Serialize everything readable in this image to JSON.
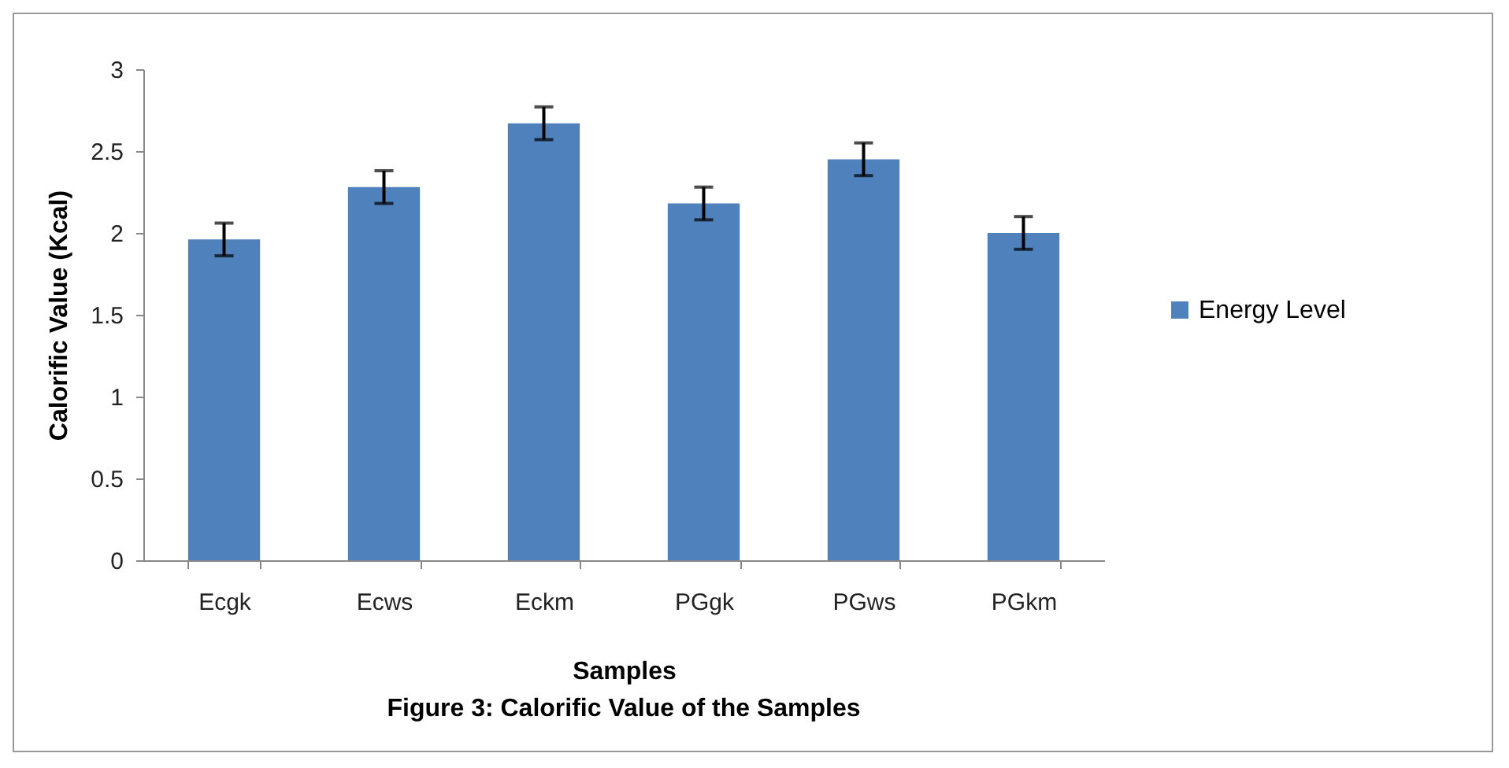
{
  "chart_data": {
    "type": "bar",
    "title": "Figure 3:  Calorific Value of the Samples",
    "xlabel": "Samples",
    "ylabel": "Calorific Value (Kcal)",
    "categories": [
      "Ecgk",
      "Ecws",
      "Eckm",
      "PGgk",
      "PGws",
      "PGkm"
    ],
    "series": [
      {
        "name": "Energy Level",
        "color": "#4f81bd",
        "values": [
          1.96,
          2.28,
          2.67,
          2.18,
          2.45,
          2.0
        ],
        "errors": [
          0.1,
          0.1,
          0.1,
          0.1,
          0.1,
          0.1
        ]
      }
    ],
    "ylim": [
      0,
      3
    ],
    "yticks": [
      0,
      0.5,
      1,
      1.5,
      2,
      2.5,
      3
    ],
    "grid": false,
    "legend": "right"
  }
}
